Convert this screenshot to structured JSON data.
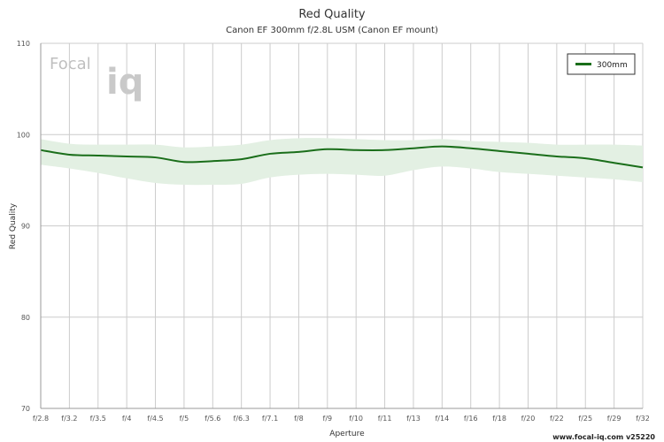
{
  "chart_data": {
    "type": "line",
    "title": "Red Quality",
    "subtitle": "Canon EF 300mm f/2.8L USM (Canon EF mount)",
    "xlabel": "Aperture",
    "ylabel": "Red Quality",
    "ylim": [
      70,
      110
    ],
    "yticks": [
      70,
      80,
      90,
      100,
      110
    ],
    "categories": [
      "f/2.8",
      "f/3.2",
      "f/3.5",
      "f/4",
      "f/4.5",
      "f/5",
      "f/5.6",
      "f/6.3",
      "f/7.1",
      "f/8",
      "f/9",
      "f/10",
      "f/11",
      "f/13",
      "f/14",
      "f/16",
      "f/18",
      "f/20",
      "f/22",
      "f/25",
      "f/29",
      "f/32"
    ],
    "grid": true,
    "legend_position": "top-right",
    "series": [
      {
        "name": "300mm",
        "color": "#1a6e1a",
        "values": [
          98.3,
          97.8,
          97.7,
          97.6,
          97.5,
          97.0,
          97.1,
          97.3,
          97.9,
          98.1,
          98.4,
          98.3,
          98.3,
          98.5,
          98.7,
          98.5,
          98.2,
          97.9,
          97.6,
          97.4,
          96.9,
          96.4
        ],
        "band_upper": [
          99.5,
          99.0,
          98.9,
          98.9,
          98.9,
          98.6,
          98.7,
          98.9,
          99.4,
          99.6,
          99.6,
          99.5,
          99.4,
          99.4,
          99.5,
          99.3,
          99.2,
          99.1,
          98.9,
          98.9,
          98.9,
          98.8
        ],
        "band_lower": [
          96.7,
          96.3,
          95.8,
          95.2,
          94.7,
          94.5,
          94.5,
          94.6,
          95.3,
          95.6,
          95.7,
          95.6,
          95.5,
          96.1,
          96.5,
          96.3,
          95.9,
          95.7,
          95.5,
          95.3,
          95.1,
          94.8
        ]
      }
    ]
  },
  "logo": {
    "text_focal": "Focal",
    "text_iq": "iq"
  },
  "footer": "www.focal-iq.com  v25220",
  "colors": {
    "band": "#e3f0e3",
    "line": "#1a6e1a",
    "grid": "#cccccc"
  }
}
